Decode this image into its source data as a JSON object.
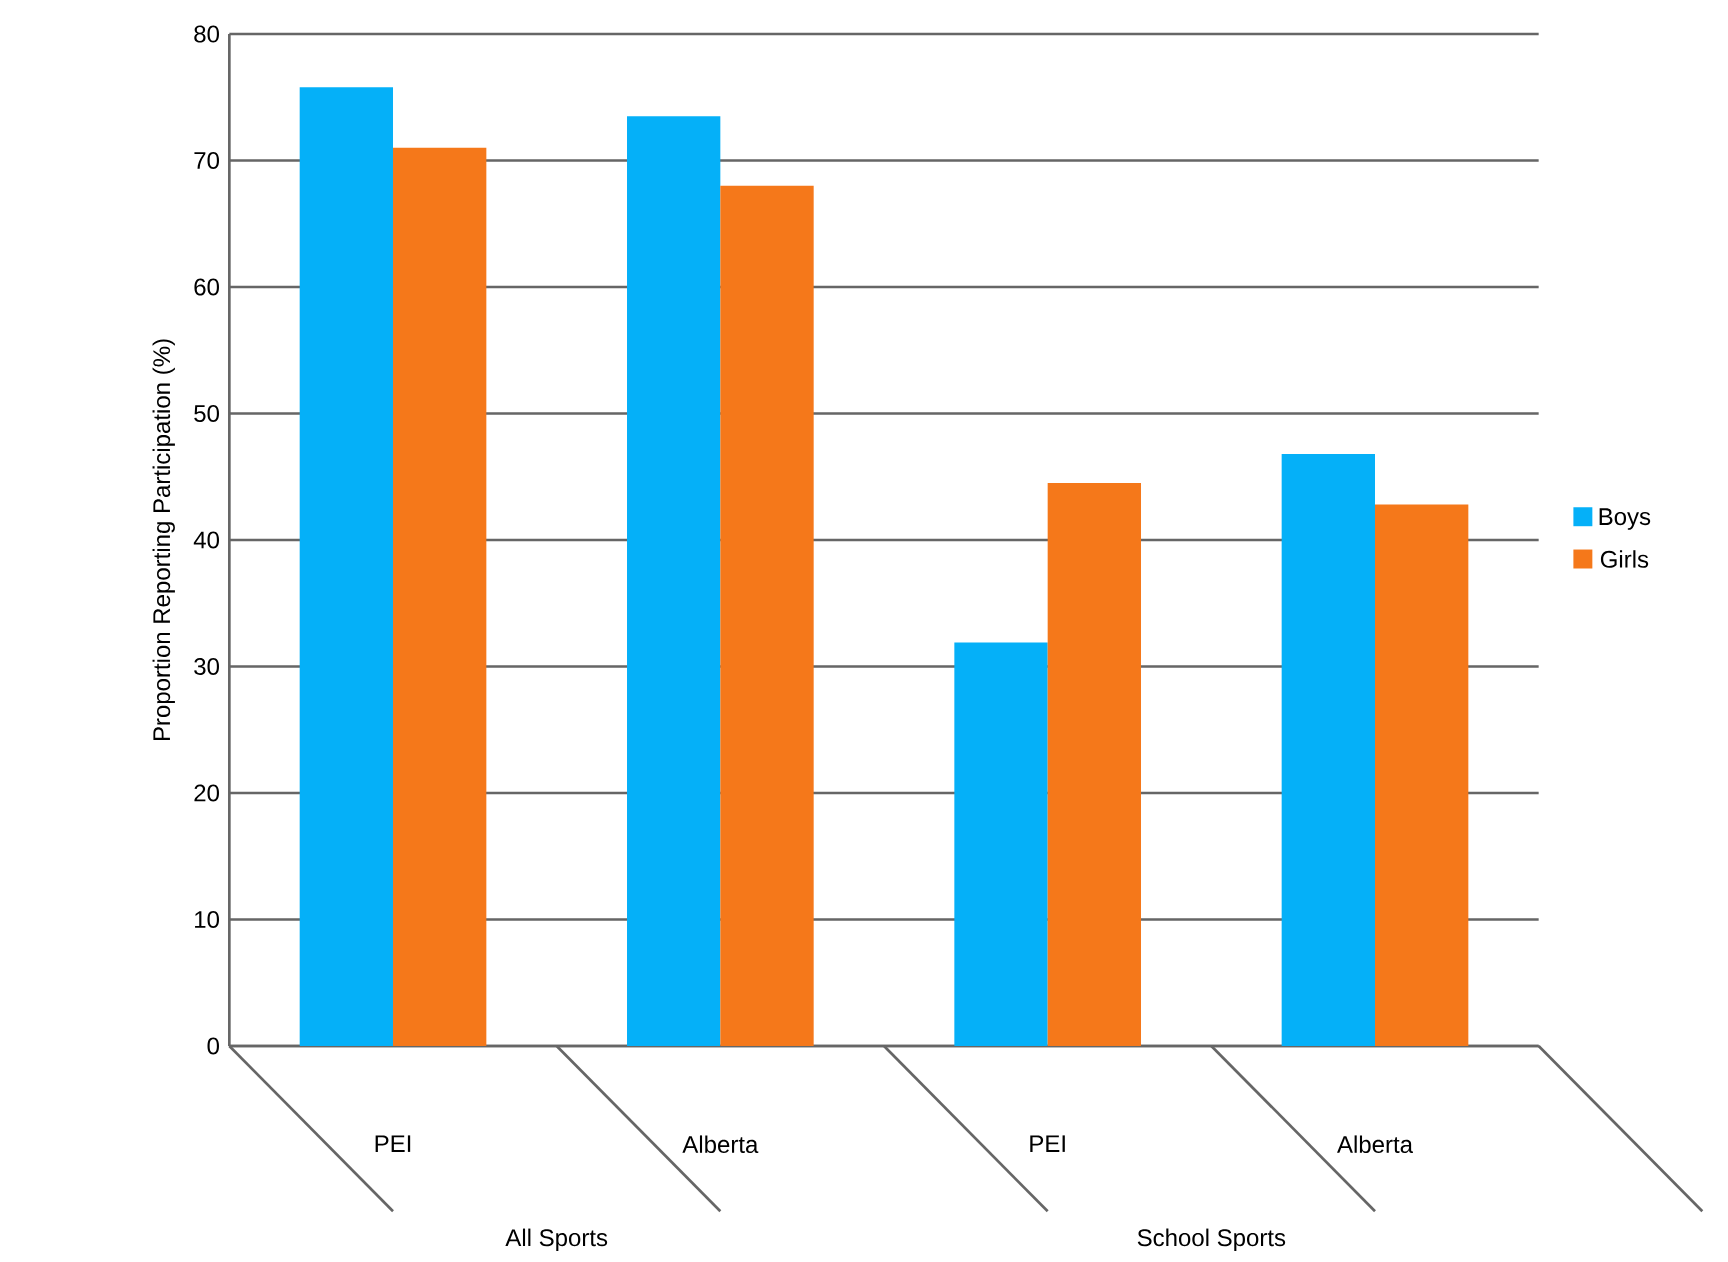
{
  "chart_data": {
    "type": "bar",
    "ylabel": "Proportion Reporting Participation (%)",
    "categories": [
      "PEI",
      "Alberta",
      "PEI",
      "Alberta"
    ],
    "series": [
      {
        "name": "Boys",
        "color": "#05b0f8",
        "values": [
          75.8,
          73.5,
          31.9,
          46.8
        ]
      },
      {
        "name": "Girls",
        "color": "#f5781a",
        "values": [
          71.0,
          68.0,
          44.5,
          42.8
        ]
      }
    ],
    "ylim": [
      0,
      80
    ],
    "yticks": [
      0,
      10,
      20,
      30,
      40,
      50,
      60,
      70,
      80
    ],
    "grid": "y",
    "legend": "right",
    "annotations": [
      "All Sports",
      "School Sports"
    ]
  }
}
